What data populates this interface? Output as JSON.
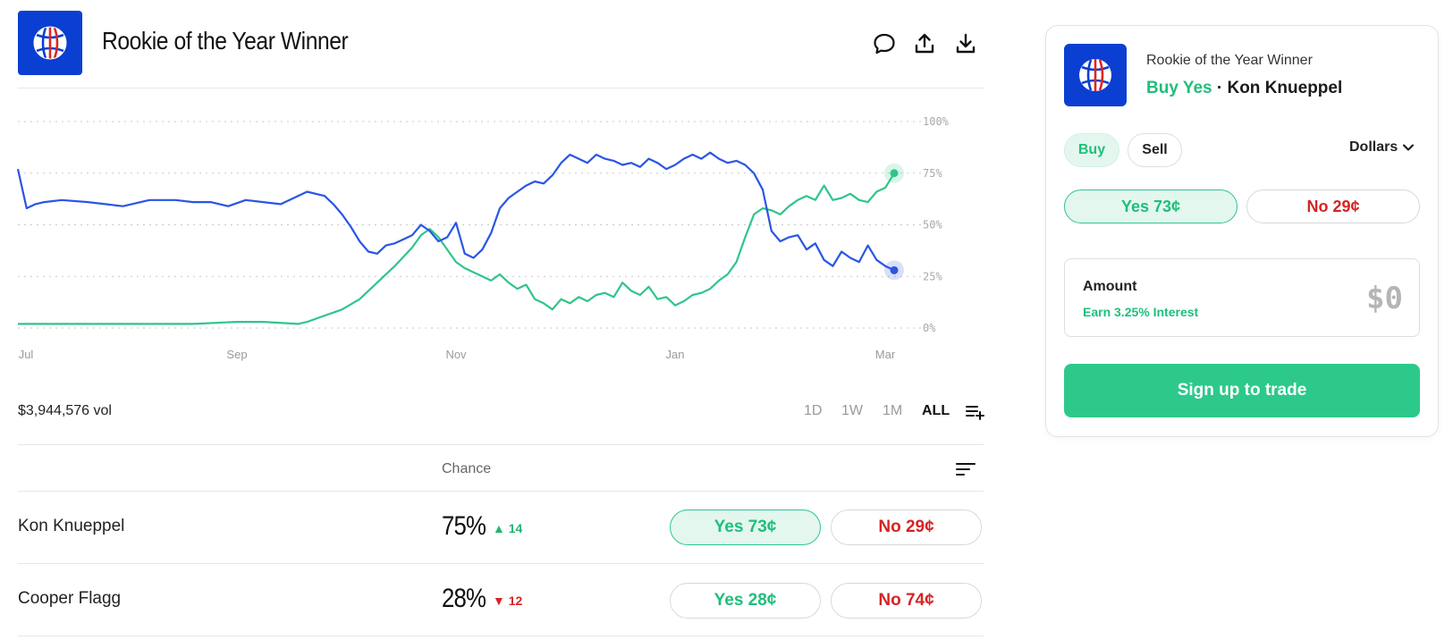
{
  "header": {
    "title": "Rookie of the Year Winner",
    "icons": [
      "comment-icon",
      "share-icon",
      "download-icon"
    ]
  },
  "colors": {
    "brand_blue": "#0b3fd1",
    "series_blue": "#2a55e5",
    "series_green": "#2fc58a",
    "yes_green": "#1fbf7a",
    "no_red": "#d62424"
  },
  "chart_data": {
    "type": "line",
    "y_tick_labels": [
      "100%",
      "75%",
      "50%",
      "25%",
      "0%"
    ],
    "x_tick_labels": [
      "Jul",
      "Sep",
      "Nov",
      "Jan",
      "Mar"
    ],
    "ylim": [
      0,
      100
    ],
    "grid": true,
    "series": [
      {
        "name": "Kon Knueppel",
        "color": "#2fc58a",
        "points": [
          [
            0,
            2
          ],
          [
            10,
            2
          ],
          [
            20,
            2
          ],
          [
            25,
            3
          ],
          [
            28,
            3
          ],
          [
            32,
            2
          ],
          [
            33,
            3
          ],
          [
            35,
            6
          ],
          [
            37,
            9
          ],
          [
            39,
            14
          ],
          [
            41,
            22
          ],
          [
            43,
            30
          ],
          [
            45,
            39
          ],
          [
            46,
            45
          ],
          [
            47,
            48
          ],
          [
            48,
            44
          ],
          [
            49,
            38
          ],
          [
            50,
            32
          ],
          [
            51,
            29
          ],
          [
            52,
            27
          ],
          [
            53,
            25
          ],
          [
            54,
            23
          ],
          [
            55,
            26
          ],
          [
            56,
            22
          ],
          [
            57,
            19
          ],
          [
            58,
            21
          ],
          [
            59,
            14
          ],
          [
            60,
            12
          ],
          [
            61,
            9
          ],
          [
            62,
            14
          ],
          [
            63,
            12
          ],
          [
            64,
            15
          ],
          [
            65,
            13
          ],
          [
            66,
            16
          ],
          [
            67,
            17
          ],
          [
            68,
            15
          ],
          [
            69,
            22
          ],
          [
            70,
            18
          ],
          [
            71,
            16
          ],
          [
            72,
            20
          ],
          [
            73,
            14
          ],
          [
            74,
            15
          ],
          [
            75,
            11
          ],
          [
            76,
            13
          ],
          [
            77,
            16
          ],
          [
            78,
            17
          ],
          [
            79,
            19
          ],
          [
            80,
            23
          ],
          [
            81,
            26
          ],
          [
            82,
            32
          ],
          [
            83,
            44
          ],
          [
            84,
            55
          ],
          [
            85,
            58
          ],
          [
            86,
            57
          ],
          [
            87,
            55
          ],
          [
            88,
            59
          ],
          [
            89,
            62
          ],
          [
            90,
            64
          ],
          [
            91,
            62
          ],
          [
            92,
            69
          ],
          [
            93,
            62
          ],
          [
            94,
            63
          ],
          [
            95,
            65
          ],
          [
            96,
            62
          ],
          [
            97,
            61
          ],
          [
            98,
            66
          ],
          [
            99,
            68
          ],
          [
            100,
            75
          ]
        ]
      },
      {
        "name": "Cooper Flagg",
        "color": "#2a55e5",
        "points": [
          [
            0,
            77
          ],
          [
            1,
            58
          ],
          [
            2,
            60
          ],
          [
            3,
            61
          ],
          [
            5,
            62
          ],
          [
            8,
            61
          ],
          [
            10,
            60
          ],
          [
            12,
            59
          ],
          [
            15,
            62
          ],
          [
            18,
            62
          ],
          [
            20,
            61
          ],
          [
            22,
            61
          ],
          [
            24,
            59
          ],
          [
            26,
            62
          ],
          [
            28,
            61
          ],
          [
            30,
            60
          ],
          [
            33,
            66
          ],
          [
            35,
            64
          ],
          [
            36,
            60
          ],
          [
            37,
            55
          ],
          [
            38,
            49
          ],
          [
            39,
            42
          ],
          [
            40,
            37
          ],
          [
            41,
            36
          ],
          [
            42,
            40
          ],
          [
            43,
            41
          ],
          [
            44,
            43
          ],
          [
            45,
            45
          ],
          [
            46,
            50
          ],
          [
            47,
            47
          ],
          [
            48,
            42
          ],
          [
            49,
            44
          ],
          [
            50,
            51
          ],
          [
            51,
            36
          ],
          [
            52,
            34
          ],
          [
            53,
            38
          ],
          [
            54,
            46
          ],
          [
            55,
            58
          ],
          [
            56,
            63
          ],
          [
            57,
            66
          ],
          [
            58,
            69
          ],
          [
            59,
            71
          ],
          [
            60,
            70
          ],
          [
            61,
            74
          ],
          [
            62,
            80
          ],
          [
            63,
            84
          ],
          [
            64,
            82
          ],
          [
            65,
            80
          ],
          [
            66,
            84
          ],
          [
            67,
            82
          ],
          [
            68,
            81
          ],
          [
            69,
            79
          ],
          [
            70,
            80
          ],
          [
            71,
            78
          ],
          [
            72,
            82
          ],
          [
            73,
            80
          ],
          [
            74,
            77
          ],
          [
            75,
            79
          ],
          [
            76,
            82
          ],
          [
            77,
            84
          ],
          [
            78,
            82
          ],
          [
            79,
            85
          ],
          [
            80,
            82
          ],
          [
            81,
            80
          ],
          [
            82,
            81
          ],
          [
            83,
            79
          ],
          [
            84,
            75
          ],
          [
            85,
            67
          ],
          [
            86,
            47
          ],
          [
            87,
            42
          ],
          [
            88,
            44
          ],
          [
            89,
            45
          ],
          [
            90,
            38
          ],
          [
            91,
            41
          ],
          [
            92,
            33
          ],
          [
            93,
            30
          ],
          [
            94,
            37
          ],
          [
            95,
            34
          ],
          [
            96,
            32
          ],
          [
            97,
            40
          ],
          [
            98,
            33
          ],
          [
            99,
            30
          ],
          [
            100,
            28
          ]
        ]
      }
    ]
  },
  "footer_bar": {
    "volume": "$3,944,576 vol",
    "ranges": [
      "1D",
      "1W",
      "1M",
      "ALL"
    ],
    "active_range": "ALL"
  },
  "table": {
    "chance_header": "Chance",
    "rows": [
      {
        "name": "Kon Knueppel",
        "chance": "75%",
        "delta": "14",
        "direction": "up",
        "yes": "Yes 73¢",
        "no": "No 29¢",
        "selected": true
      },
      {
        "name": "Cooper Flagg",
        "chance": "28%",
        "delta": "12",
        "direction": "down",
        "yes": "Yes 28¢",
        "no": "No 74¢",
        "selected": false
      }
    ]
  },
  "panel": {
    "title": "Rookie of the Year Winner",
    "action": "Buy Yes",
    "separator": "·",
    "outcome": "Kon Knueppel",
    "buy": "Buy",
    "sell": "Sell",
    "currency": "Dollars",
    "yes": "Yes 73¢",
    "no": "No 29¢",
    "amount_label": "Amount",
    "amount_sub": "Earn 3.25% Interest",
    "amount_value": "$0",
    "cta": "Sign up to trade"
  }
}
